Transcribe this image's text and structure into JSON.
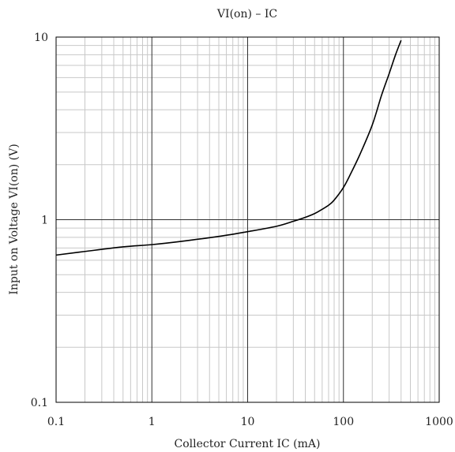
{
  "chart_data": {
    "type": "line",
    "title": "VI(on) – IC",
    "xlabel": "Collector Current IC (mA)",
    "ylabel": "Input on Voltage VI(on) (V)",
    "x_scale": "log",
    "y_scale": "log",
    "xlim": [
      0.1,
      1000
    ],
    "ylim": [
      0.1,
      10
    ],
    "x_ticks": [
      "0.1",
      "1",
      "10",
      "100",
      "1000"
    ],
    "y_ticks": [
      "0.1",
      "1",
      "10"
    ],
    "grid": true,
    "series": [
      {
        "x": [
          0.1,
          0.2,
          0.5,
          1,
          2,
          5,
          10,
          20,
          30,
          40,
          50,
          60,
          70,
          80,
          100,
          120,
          150,
          200,
          250,
          300,
          350,
          400
        ],
        "y": [
          0.64,
          0.67,
          0.71,
          0.73,
          0.76,
          0.81,
          0.86,
          0.92,
          0.98,
          1.03,
          1.08,
          1.14,
          1.2,
          1.28,
          1.5,
          1.8,
          2.3,
          3.3,
          4.8,
          6.3,
          8.0,
          9.6
        ]
      }
    ],
    "colors": {
      "line": "#000000",
      "minor_grid": "#c8c8c8",
      "major_grid": "#303030"
    }
  }
}
